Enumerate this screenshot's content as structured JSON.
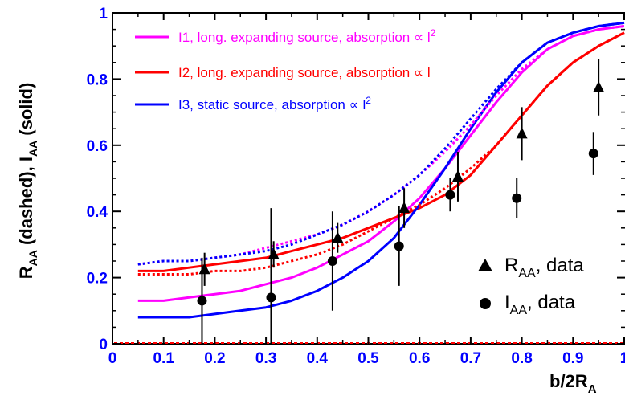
{
  "chart_data": {
    "type": "line",
    "xlabel": "b/2R",
    "xlabel_sub": "A",
    "ylabel_parts": [
      "R",
      "AA",
      " (dashed), I",
      "AA",
      " (solid)"
    ],
    "xlim": [
      0,
      1
    ],
    "ylim": [
      0,
      1
    ],
    "xticks": [
      "0",
      "0.1",
      "0.2",
      "0.3",
      "0.4",
      "0.5",
      "0.6",
      "0.7",
      "0.8",
      "0.9",
      "1"
    ],
    "yticks": [
      "0",
      "0.2",
      "0.4",
      "0.6",
      "0.8",
      "1"
    ],
    "grid": false,
    "legend_placement": "top-left",
    "data_legend_placement": "bottom-right",
    "colors": {
      "I1": "#ff00ff",
      "I2": "#ff0000",
      "I3": "#0000ff",
      "axis": "#000000",
      "ticks": "#0000ff"
    },
    "legend": [
      {
        "key": "I1",
        "text": "I1, long. expanding source, absorption ∝ l",
        "sup": "2"
      },
      {
        "key": "I2",
        "text": "I2, long. expanding source, absorption ∝ l",
        "sup": ""
      },
      {
        "key": "I3",
        "text": "I3, static source, absorption ∝ l",
        "sup": "2"
      }
    ],
    "x": [
      0.05,
      0.1,
      0.15,
      0.2,
      0.25,
      0.3,
      0.35,
      0.4,
      0.45,
      0.5,
      0.55,
      0.6,
      0.65,
      0.7,
      0.75,
      0.8,
      0.85,
      0.9,
      0.95,
      1.0
    ],
    "series": [
      {
        "key": "I1",
        "style": "solid",
        "values": [
          0.13,
          0.13,
          0.14,
          0.15,
          0.16,
          0.18,
          0.2,
          0.23,
          0.27,
          0.31,
          0.37,
          0.44,
          0.53,
          0.63,
          0.73,
          0.82,
          0.89,
          0.93,
          0.95,
          0.96
        ]
      },
      {
        "key": "I2",
        "style": "solid",
        "values": [
          0.22,
          0.22,
          0.23,
          0.24,
          0.25,
          0.26,
          0.28,
          0.3,
          0.32,
          0.35,
          0.38,
          0.41,
          0.45,
          0.51,
          0.6,
          0.69,
          0.78,
          0.85,
          0.9,
          0.94
        ]
      },
      {
        "key": "I3",
        "style": "solid",
        "values": [
          0.08,
          0.08,
          0.08,
          0.09,
          0.1,
          0.11,
          0.13,
          0.16,
          0.2,
          0.25,
          0.32,
          0.42,
          0.53,
          0.65,
          0.76,
          0.85,
          0.91,
          0.94,
          0.96,
          0.97
        ]
      },
      {
        "key": "I1",
        "style": "dashed",
        "values": [
          0.24,
          0.25,
          0.25,
          0.26,
          0.27,
          0.29,
          0.31,
          0.33,
          0.36,
          0.4,
          0.45,
          0.51,
          0.58,
          0.66,
          0.75,
          0.83,
          0.89,
          0.93,
          0.95,
          0.96
        ]
      },
      {
        "key": "I2",
        "style": "dashed",
        "values": [
          0.21,
          0.21,
          0.21,
          0.22,
          0.22,
          0.23,
          0.25,
          0.27,
          0.3,
          0.34,
          0.38,
          0.42,
          0.47,
          0.53,
          0.6,
          0.69,
          0.78,
          0.85,
          0.9,
          0.94
        ]
      },
      {
        "key": "I3",
        "style": "dashed",
        "values": [
          0.24,
          0.25,
          0.25,
          0.26,
          0.27,
          0.28,
          0.3,
          0.33,
          0.36,
          0.4,
          0.45,
          0.51,
          0.59,
          0.68,
          0.77,
          0.85,
          0.91,
          0.94,
          0.96,
          0.97
        ]
      }
    ],
    "data_series": [
      {
        "name_main": "R",
        "name_sub": "AA",
        "name_rest": ", data",
        "marker": "triangle",
        "points": [
          {
            "x": 0.18,
            "y": 0.225,
            "err": 0.05
          },
          {
            "x": 0.315,
            "y": 0.27,
            "err": 0.04
          },
          {
            "x": 0.44,
            "y": 0.32,
            "err": 0.045
          },
          {
            "x": 0.57,
            "y": 0.41,
            "err": 0.06
          },
          {
            "x": 0.675,
            "y": 0.505,
            "err": 0.075
          },
          {
            "x": 0.8,
            "y": 0.635,
            "err": 0.08
          },
          {
            "x": 0.95,
            "y": 0.775,
            "err": 0.085
          }
        ]
      },
      {
        "name_main": "I",
        "name_sub": "AA",
        "name_rest": ",  data",
        "marker": "circle",
        "points": [
          {
            "x": 0.175,
            "y": 0.13,
            "err": 0.13
          },
          {
            "x": 0.31,
            "y": 0.14,
            "err": 0.27
          },
          {
            "x": 0.43,
            "y": 0.25,
            "err": 0.15
          },
          {
            "x": 0.56,
            "y": 0.295,
            "err": 0.12
          },
          {
            "x": 0.66,
            "y": 0.45,
            "err": 0.05
          },
          {
            "x": 0.79,
            "y": 0.44,
            "err": 0.06
          },
          {
            "x": 0.94,
            "y": 0.575,
            "err": 0.065
          }
        ]
      }
    ]
  }
}
